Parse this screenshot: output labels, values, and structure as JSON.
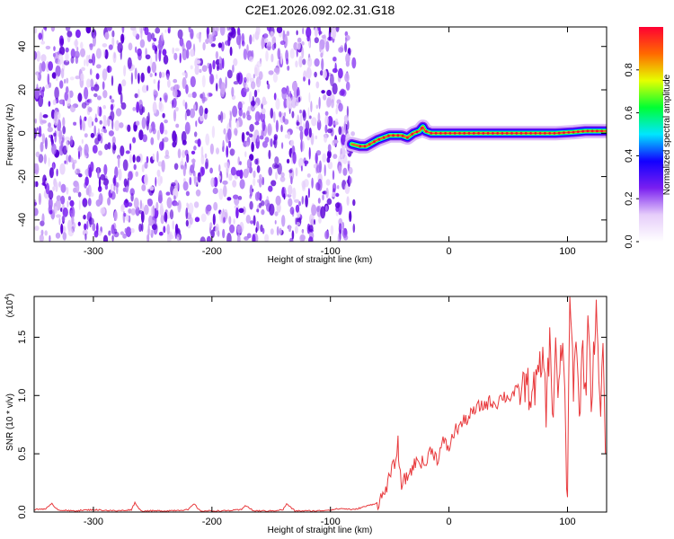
{
  "title": "C2E1.2026.092.02.31.G18",
  "colors": {
    "snr_line": "#e8393c",
    "axes": "#000000",
    "spectrogram_noise": "#7a1ff0",
    "spectrogram_ridge": "#e8393c"
  },
  "chart_data": [
    {
      "type": "heatmap",
      "xlabel": "Height of straight line (km)",
      "ylabel": "Frequency (Hz)",
      "xlim": [
        -350,
        133
      ],
      "ylim": [
        -50,
        49
      ],
      "x_ticks": [
        -300,
        -200,
        -100,
        0,
        100
      ],
      "y_ticks": [
        -40,
        -20,
        0,
        20,
        40
      ],
      "noise_region_x": [
        -350,
        -80
      ],
      "ridge": {
        "x": [
          -82,
          -75,
          -70,
          -60,
          -50,
          -40,
          -35,
          -30,
          -25,
          -22,
          -20,
          -15,
          -5,
          10,
          30,
          60,
          90,
          105,
          115,
          133
        ],
        "freq": [
          -5,
          -6,
          -6,
          -3,
          -1,
          -1,
          -2,
          0,
          1,
          3,
          1,
          0,
          0,
          0,
          0,
          0,
          0,
          0.5,
          1,
          1
        ]
      },
      "colorbar": {
        "label": "Normalized spectral amplitude",
        "range": [
          0,
          1
        ],
        "ticks": [
          0.0,
          0.2,
          0.4,
          0.6,
          0.8
        ],
        "tick_labels": [
          "0.0",
          "0.2",
          "0.4",
          "0.6",
          "0.8"
        ],
        "colormap": [
          "#ffffff",
          "#e6cdfa",
          "#7a1ff0",
          "#1200ff",
          "#00e6ff",
          "#00ff33",
          "#e6ff00",
          "#ff6a00",
          "#ff0033"
        ]
      }
    },
    {
      "type": "line",
      "xlabel": "Height of straight line (km)",
      "ylabel": "SNR (10 * v/v)",
      "y_multiplier": "(x10",
      "y_multiplier_exp": "4",
      "y_multiplier_close": ")",
      "xlim": [
        -350,
        133
      ],
      "ylim": [
        0,
        1.85
      ],
      "x_ticks": [
        -300,
        -200,
        -100,
        0,
        100
      ],
      "y_ticks": [
        0.0,
        0.5,
        1.0,
        1.5
      ],
      "y_tick_labels": [
        "0.0",
        "0.5",
        "1.0",
        "1.5"
      ],
      "series": [
        {
          "x": [
            -350,
            -340,
            -335,
            -330,
            -320,
            -300,
            -280,
            -268,
            -265,
            -260,
            -240,
            -220,
            -215,
            -210,
            -190,
            -175,
            -172,
            -165,
            -150,
            -140,
            -137,
            -130,
            -110,
            -100,
            -90,
            -80,
            -70,
            -60,
            -55,
            -50,
            -45,
            -43,
            -42,
            -40,
            -35,
            -30,
            -25,
            -20,
            -15,
            -10,
            -5,
            0,
            5,
            10,
            15,
            20,
            25,
            30,
            35,
            40,
            45,
            50,
            55,
            60,
            65,
            70,
            75,
            80,
            82,
            85,
            88,
            90,
            92,
            95,
            97,
            100,
            102,
            105,
            108,
            110,
            113,
            115,
            118,
            120,
            122,
            125,
            128,
            130,
            132
          ],
          "y": [
            0.02,
            0.03,
            0.07,
            0.02,
            0.01,
            0.02,
            0.01,
            0.02,
            0.08,
            0.01,
            0.01,
            0.02,
            0.07,
            0.01,
            0.01,
            0.02,
            0.06,
            0.01,
            0.01,
            0.02,
            0.07,
            0.01,
            0.01,
            0.02,
            0.03,
            0.02,
            0.05,
            0.08,
            0.15,
            0.3,
            0.45,
            0.6,
            0.35,
            0.25,
            0.3,
            0.4,
            0.45,
            0.4,
            0.55,
            0.45,
            0.6,
            0.55,
            0.7,
            0.75,
            0.8,
            0.85,
            0.9,
            0.92,
            0.95,
            0.93,
            1.0,
            0.98,
            1.02,
            1.05,
            1.1,
            1.0,
            1.15,
            1.3,
            0.9,
            1.45,
            0.8,
            1.55,
            0.9,
            1.4,
            1.3,
            0.02,
            1.85,
            1.1,
            1.5,
            0.8,
            1.45,
            1.0,
            1.7,
            0.9,
            1.4,
            1.75,
            0.7,
            1.5,
            0.5
          ]
        }
      ]
    }
  ]
}
